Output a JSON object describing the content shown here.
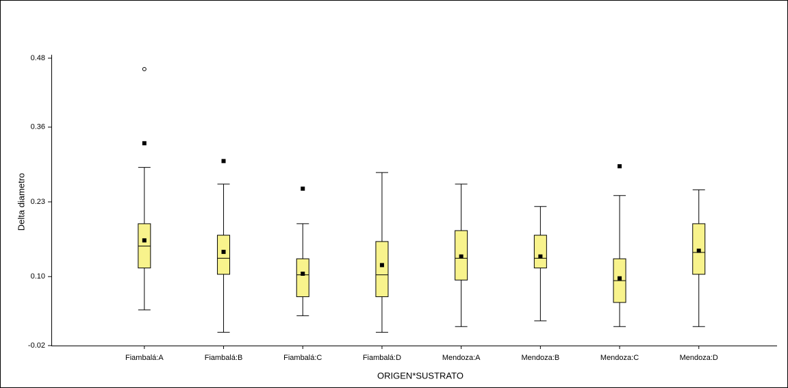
{
  "chart_data": {
    "type": "box",
    "y_label": "Delta diametro",
    "x_label": "ORIGEN*SUSTRATO",
    "categories": [
      "Fiambalá:A",
      "Fiambalá:B",
      "Fiambalá:C",
      "Fiambalá:D",
      "Mendoza:A",
      "Mendoza:B",
      "Mendoza:C",
      "Mendoza:D"
    ],
    "boxes": [
      {
        "whisker_low": 0.042,
        "q1": 0.115,
        "median": 0.153,
        "q3": 0.192,
        "whisker_high": 0.29,
        "mean": 0.163,
        "outliers": [
          0.332
        ],
        "far_outliers": [
          0.461
        ]
      },
      {
        "whisker_low": 0.003,
        "q1": 0.104,
        "median": 0.132,
        "q3": 0.172,
        "whisker_high": 0.261,
        "mean": 0.143,
        "outliers": [
          0.301
        ],
        "far_outliers": []
      },
      {
        "whisker_low": 0.032,
        "q1": 0.065,
        "median": 0.103,
        "q3": 0.131,
        "whisker_high": 0.192,
        "mean": 0.105,
        "outliers": [
          0.253
        ],
        "far_outliers": []
      },
      {
        "whisker_low": 0.003,
        "q1": 0.065,
        "median": 0.103,
        "q3": 0.161,
        "whisker_high": 0.281,
        "mean": 0.12,
        "outliers": [],
        "far_outliers": []
      },
      {
        "whisker_low": 0.013,
        "q1": 0.094,
        "median": 0.132,
        "q3": 0.18,
        "whisker_high": 0.261,
        "mean": 0.135,
        "outliers": [],
        "far_outliers": []
      },
      {
        "whisker_low": 0.023,
        "q1": 0.115,
        "median": 0.132,
        "q3": 0.172,
        "whisker_high": 0.222,
        "mean": 0.135,
        "outliers": [],
        "far_outliers": []
      },
      {
        "whisker_low": 0.013,
        "q1": 0.055,
        "median": 0.093,
        "q3": 0.131,
        "whisker_high": 0.241,
        "mean": 0.097,
        "outliers": [
          0.292
        ],
        "far_outliers": []
      },
      {
        "whisker_low": 0.013,
        "q1": 0.104,
        "median": 0.142,
        "q3": 0.192,
        "whisker_high": 0.251,
        "mean": 0.145,
        "outliers": [],
        "far_outliers": []
      }
    ],
    "color": "#f8f38c",
    "ylim": [
      -0.02,
      0.48
    ],
    "yticks": [
      -0.02,
      {
        "value": 0.1,
        "label": "0.10"
      },
      0.23,
      0.36,
      0.48
    ]
  }
}
